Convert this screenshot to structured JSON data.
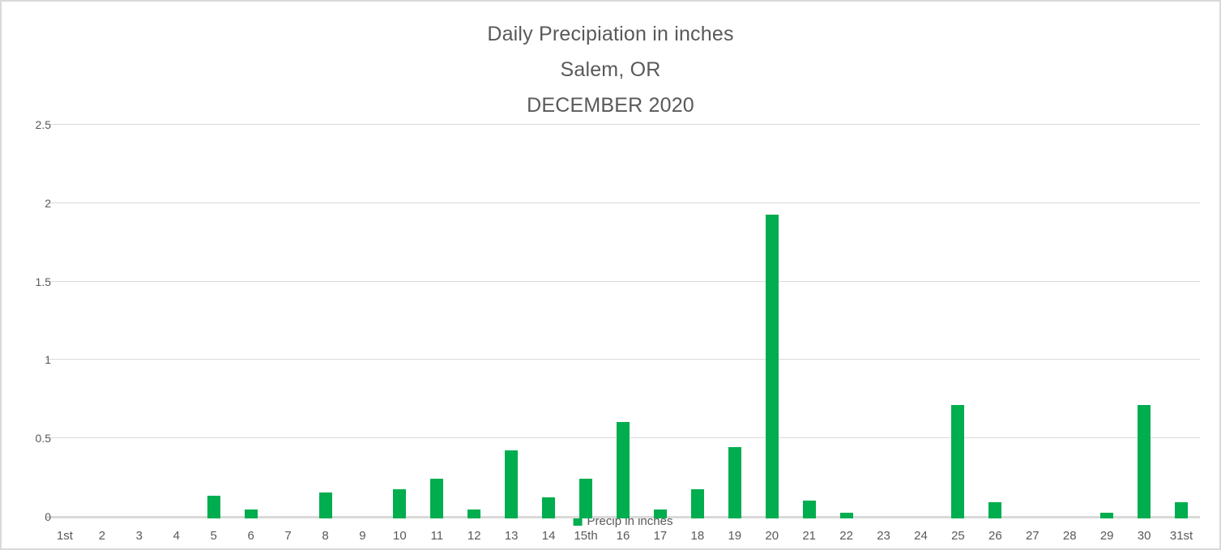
{
  "chart_data": {
    "type": "bar",
    "title": "Daily Precipiation in inches",
    "subtitle": "Salem, OR",
    "subtitle2": "DECEMBER 2020",
    "categories": [
      "1st",
      "2",
      "3",
      "4",
      "5",
      "6",
      "7",
      "8",
      "9",
      "10",
      "11",
      "12",
      "13",
      "14",
      "15th",
      "16",
      "17",
      "18",
      "19",
      "20",
      "21",
      "22",
      "23",
      "24",
      "25",
      "26",
      "27",
      "28",
      "29",
      "30",
      "31st"
    ],
    "values": [
      0,
      0,
      0,
      0,
      0.13,
      0.04,
      0,
      0.15,
      0,
      0.17,
      0.24,
      0.04,
      0.42,
      0.12,
      0.24,
      0.6,
      0.04,
      0.17,
      0.44,
      1.92,
      0.1,
      0.02,
      0,
      0,
      0.71,
      0.09,
      0,
      0,
      0.02,
      0.71,
      0.09
    ],
    "series_name": "Precip in inches",
    "xlabel": "",
    "ylabel": "",
    "ylim": [
      0,
      2.5
    ],
    "y_ticks": [
      "0",
      "0.5",
      "1",
      "1.5",
      "2",
      "2.5"
    ],
    "y_tick_values": [
      0,
      0.5,
      1,
      1.5,
      2,
      2.5
    ],
    "grid": true,
    "legend_position": "bottom-center",
    "colors": {
      "bar": "#00ad4f",
      "gridline": "#d9d9d9",
      "axis_line": "#d9d9d9",
      "axis_text": "#595959",
      "title_text": "#595959",
      "frame_border": "#d9d9d9",
      "background": "#ffffff"
    }
  }
}
